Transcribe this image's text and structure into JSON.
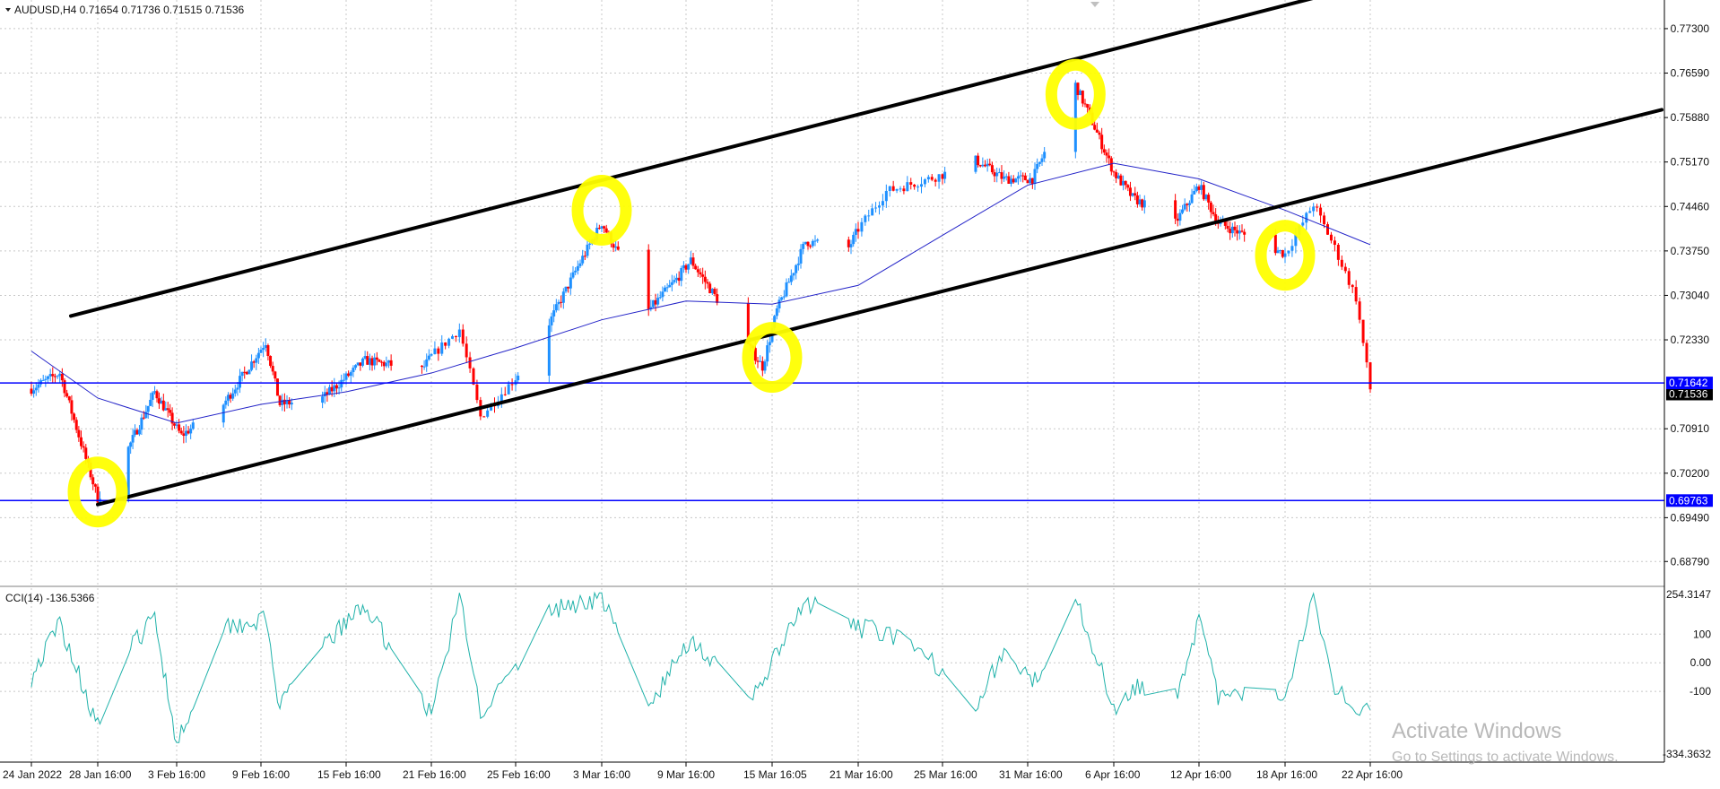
{
  "header": {
    "symbol": "AUDUSD,H4",
    "open": "0.71654",
    "high": "0.71736",
    "low": "0.71515",
    "close": "0.71536"
  },
  "indicator": {
    "name": "CCI(14)",
    "value": "-136.5366"
  },
  "price_axis_labels": [
    "0.77300",
    "0.76590",
    "0.75880",
    "0.75170",
    "0.74460",
    "0.73750",
    "0.73040",
    "0.72330",
    "0.70910",
    "0.70200",
    "0.69490",
    "0.68790"
  ],
  "cci_axis_labels": [
    "254.3147",
    "100",
    "0.00",
    "-100",
    "-334.3632"
  ],
  "time_axis_labels": [
    "24 Jan 2022",
    "28 Jan 16:00",
    "3 Feb 16:00",
    "9 Feb 16:00",
    "15 Feb 16:00",
    "21 Feb 16:00",
    "25 Feb 16:00",
    "3 Mar 16:00",
    "9 Mar 16:00",
    "15 Mar 16:05",
    "21 Mar 16:00",
    "25 Mar 16:00",
    "31 Mar 16:00",
    "6 Apr 16:00",
    "12 Apr 16:00",
    "18 Apr 16:00",
    "22 Apr 16:00"
  ],
  "price_tags": [
    {
      "text": "0.71642",
      "color": "#0000ff"
    },
    {
      "text": "0.69763",
      "color": "#0000ff"
    },
    {
      "text": "0.71536",
      "color": "#000000"
    }
  ],
  "watermark": {
    "line1": "Activate Windows",
    "line2": "Go to Settings to activate Windows."
  },
  "colors": {
    "bull": "#1e90ff",
    "bear": "#ff0000",
    "ma": "#2323c8",
    "cci": "#20b2aa",
    "hline": "#0000ff",
    "trend": "#000000",
    "highlight": "#ffff00",
    "grid": "#c8c8c8"
  },
  "chart_data": {
    "type": "candlestick",
    "symbol": "AUDUSD",
    "timeframe": "H4",
    "y_range": [
      0.6845,
      0.777
    ],
    "horizontal_lines": [
      0.71642,
      0.69763
    ],
    "channel_lines": [
      {
        "from": [
          "24 Jan 2022",
          0.7255
        ],
        "to": [
          "22 Apr 16:00",
          0.7802
        ]
      },
      {
        "from": [
          "28 Jan 16:00",
          0.697
        ],
        "to": [
          "22 Apr 16:00",
          0.7483
        ]
      }
    ],
    "highlights": [
      {
        "x": "28 Jan 16:00",
        "y": 0.699
      },
      {
        "x": "3 Mar 16:00",
        "y": 0.744
      },
      {
        "x": "15 Mar 16:05",
        "y": 0.7205
      },
      {
        "x": "4 Apr 2022",
        "y": 0.7625
      },
      {
        "x": "18 Apr 16:00",
        "y": 0.7368
      }
    ],
    "price_path_keypoints": [
      {
        "x": "24 Jan 2022",
        "y": 0.7155
      },
      {
        "x": "26 Jan 2022",
        "y": 0.718
      },
      {
        "x": "28 Jan 16:00",
        "y": 0.698
      },
      {
        "x": "31 Jan 2022",
        "y": 0.706
      },
      {
        "x": "2 Feb 2022",
        "y": 0.715
      },
      {
        "x": "4 Feb 2022",
        "y": 0.708
      },
      {
        "x": "7 Feb 2022",
        "y": 0.713
      },
      {
        "x": "10 Feb 2022",
        "y": 0.723
      },
      {
        "x": "11 Feb 2022",
        "y": 0.713
      },
      {
        "x": "14 Feb 2022",
        "y": 0.714
      },
      {
        "x": "17 Feb 2022",
        "y": 0.72
      },
      {
        "x": "21 Feb 2022",
        "y": 0.7185
      },
      {
        "x": "23 Feb 2022",
        "y": 0.725
      },
      {
        "x": "24 Feb 2022",
        "y": 0.711
      },
      {
        "x": "28 Feb 2022",
        "y": 0.726
      },
      {
        "x": "2 Mar 2022",
        "y": 0.735
      },
      {
        "x": "3 Mar 16:00",
        "y": 0.742
      },
      {
        "x": "7 Mar 2022",
        "y": 0.728
      },
      {
        "x": "9 Mar 2022",
        "y": 0.733
      },
      {
        "x": "10 Mar 2022",
        "y": 0.736
      },
      {
        "x": "15 Mar 2022",
        "y": 0.719
      },
      {
        "x": "16 Mar 2022",
        "y": 0.728
      },
      {
        "x": "18 Mar 2022",
        "y": 0.739
      },
      {
        "x": "21 Mar 2022",
        "y": 0.738
      },
      {
        "x": "23 Mar 2022",
        "y": 0.747
      },
      {
        "x": "28 Mar 2022",
        "y": 0.752
      },
      {
        "x": "30 Mar 2022",
        "y": 0.749
      },
      {
        "x": "1 Apr 2022",
        "y": 0.749
      },
      {
        "x": "4 Apr 2022",
        "y": 0.764
      },
      {
        "x": "5 Apr 2022",
        "y": 0.759
      },
      {
        "x": "6 Apr 16:00",
        "y": 0.75
      },
      {
        "x": "8 Apr 2022",
        "y": 0.746
      },
      {
        "x": "11 Apr 2022",
        "y": 0.742
      },
      {
        "x": "12 Apr 16:00",
        "y": 0.748
      },
      {
        "x": "14 Apr 2022",
        "y": 0.742
      },
      {
        "x": "18 Apr 16:00",
        "y": 0.737
      },
      {
        "x": "19 Apr 2022",
        "y": 0.739
      },
      {
        "x": "20 Apr 2022",
        "y": 0.745
      },
      {
        "x": "21 Apr 2022",
        "y": 0.738
      },
      {
        "x": "22 Apr 2022",
        "y": 0.73
      },
      {
        "x": "22 Apr 16:00",
        "y": 0.7154
      }
    ],
    "ma_keypoints": [
      {
        "x": "24 Jan 2022",
        "y": 0.7215
      },
      {
        "x": "28 Jan 16:00",
        "y": 0.714
      },
      {
        "x": "3 Feb 16:00",
        "y": 0.71
      },
      {
        "x": "9 Feb 16:00",
        "y": 0.713
      },
      {
        "x": "15 Feb 16:00",
        "y": 0.715
      },
      {
        "x": "21 Feb 16:00",
        "y": 0.718
      },
      {
        "x": "25 Feb 16:00",
        "y": 0.722
      },
      {
        "x": "3 Mar 16:00",
        "y": 0.7265
      },
      {
        "x": "9 Mar 16:00",
        "y": 0.7295
      },
      {
        "x": "15 Mar 16:05",
        "y": 0.729
      },
      {
        "x": "21 Mar 16:00",
        "y": 0.732
      },
      {
        "x": "25 Mar 16:00",
        "y": 0.74
      },
      {
        "x": "31 Mar 16:00",
        "y": 0.748
      },
      {
        "x": "6 Apr 16:00",
        "y": 0.7515
      },
      {
        "x": "12 Apr 16:00",
        "y": 0.749
      },
      {
        "x": "18 Apr 16:00",
        "y": 0.744
      },
      {
        "x": "22 Apr 16:00",
        "y": 0.7385
      }
    ],
    "cci": {
      "name": "CCI(14)",
      "last": -136.5366,
      "y_range": [
        -334.3632,
        254.3147
      ],
      "levels": [
        100,
        0,
        -100
      ],
      "keypoints": [
        {
          "x": "24 Jan 2022",
          "y": -50
        },
        {
          "x": "26 Jan 2022",
          "y": 140
        },
        {
          "x": "28 Jan 16:00",
          "y": -220
        },
        {
          "x": "31 Jan 2022",
          "y": 40
        },
        {
          "x": "2 Feb 2022",
          "y": 160
        },
        {
          "x": "3 Feb 16:00",
          "y": -280
        },
        {
          "x": "7 Feb 2022",
          "y": 130
        },
        {
          "x": "10 Feb 2022",
          "y": 150
        },
        {
          "x": "11 Feb 2022",
          "y": -160
        },
        {
          "x": "14 Feb 2022",
          "y": 60
        },
        {
          "x": "17 Feb 2022",
          "y": 200
        },
        {
          "x": "21 Feb 16:00",
          "y": -180
        },
        {
          "x": "23 Feb 2022",
          "y": 230
        },
        {
          "x": "24 Feb 2022",
          "y": -170
        },
        {
          "x": "28 Feb 2022",
          "y": 180
        },
        {
          "x": "3 Mar 16:00",
          "y": 230
        },
        {
          "x": "7 Mar 2022",
          "y": -160
        },
        {
          "x": "10 Mar 2022",
          "y": 90
        },
        {
          "x": "14 Mar 2022",
          "y": -150
        },
        {
          "x": "18 Mar 2022",
          "y": 210
        },
        {
          "x": "21 Mar 16:00",
          "y": 120
        },
        {
          "x": "23 Mar 2022",
          "y": 110
        },
        {
          "x": "28 Mar 2022",
          "y": -140
        },
        {
          "x": "30 Mar 2022",
          "y": 40
        },
        {
          "x": "1 Apr 2022",
          "y": -80
        },
        {
          "x": "4 Apr 2022",
          "y": 240
        },
        {
          "x": "6 Apr 16:00",
          "y": -160
        },
        {
          "x": "8 Apr 2022",
          "y": -80
        },
        {
          "x": "11 Apr 2022",
          "y": -120
        },
        {
          "x": "12 Apr 16:00",
          "y": 150
        },
        {
          "x": "14 Apr 2022",
          "y": -120
        },
        {
          "x": "18 Apr 16:00",
          "y": -110
        },
        {
          "x": "20 Apr 2022",
          "y": 240
        },
        {
          "x": "21 Apr 2022",
          "y": -80
        },
        {
          "x": "22 Apr 2022",
          "y": -160
        },
        {
          "x": "22 Apr 16:00",
          "y": -136.5366
        }
      ]
    }
  }
}
